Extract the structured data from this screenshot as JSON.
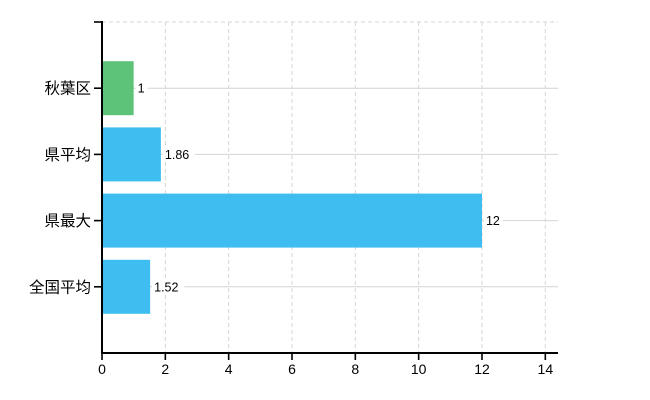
{
  "chart_data": {
    "type": "bar",
    "orientation": "horizontal",
    "title": "",
    "xlabel": "",
    "ylabel": "",
    "categories": [
      "秋葉区",
      "県平均",
      "県最大",
      "全国平均"
    ],
    "values": [
      1,
      1.86,
      12,
      1.52
    ],
    "value_labels": [
      "1",
      "1.86",
      "12",
      "1.52"
    ],
    "bar_colors": [
      "#5cc378",
      "#3ebef0",
      "#3ebef0",
      "#3ebef0"
    ],
    "xticks": [
      0,
      2,
      4,
      6,
      8,
      10,
      12,
      14
    ],
    "xtick_labels": [
      "0",
      "2",
      "4",
      "6",
      "8",
      "10",
      "12",
      "14"
    ],
    "xlim": [
      0,
      14.4
    ],
    "grid": true,
    "legend": false,
    "colors": {
      "background": "#ffffff",
      "axis": "#000000",
      "grid_line": "#d4d4d4",
      "text": "#000000",
      "accent_green": "#5cc378",
      "accent_blue": "#3ebef0"
    }
  }
}
